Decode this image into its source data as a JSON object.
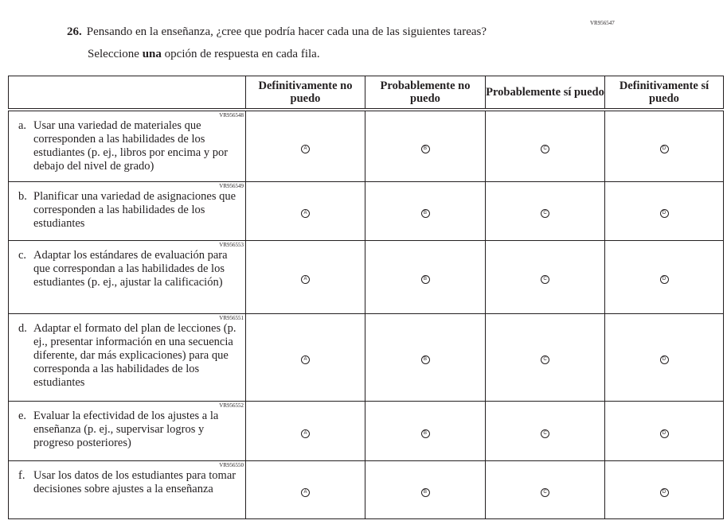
{
  "question": {
    "id": "VR956547",
    "number": "26.",
    "text": "Pensando en la enseñanza, ¿cree que podría hacer cada una de las siguientes tareas?",
    "instruction_pre": "Seleccione ",
    "instruction_bold": "una",
    "instruction_post": " opción de respuesta en cada fila."
  },
  "columns": [
    "Definitivamente no puedo",
    "Probablemente no puedo",
    "Probablemente sí puedo",
    "Definitivamente sí puedo"
  ],
  "options": [
    "A",
    "B",
    "C",
    "D"
  ],
  "rows": [
    {
      "id": "VR956548",
      "letter": "a.",
      "text": "Usar una variedad de materiales que corresponden a las habilidades de los estudiantes (p. ej., libros por encima y por debajo del nivel de grado)"
    },
    {
      "id": "VR956549",
      "letter": "b.",
      "text": "Planificar una variedad de asignaciones que corresponden a las habilidades de los estudiantes"
    },
    {
      "id": "VR956553",
      "letter": "c.",
      "text": "Adaptar los estándares de evaluación para que correspondan a las habilidades de los estudiantes (p. ej., ajustar la calificación)"
    },
    {
      "id": "VR956551",
      "letter": "d.",
      "text": "Adaptar el formato del plan de lecciones (p. ej., presentar información en una secuencia diferente, dar más explicaciones) para que corresponda a las habilidades de los estudiantes"
    },
    {
      "id": "VR956552",
      "letter": "e.",
      "text": "Evaluar la efectividad de los ajustes a la enseñanza (p. ej., supervisar logros y progreso posteriores)"
    },
    {
      "id": "VR956550",
      "letter": "f.",
      "text": "Usar los datos de los estudiantes para tomar decisiones sobre ajustes a la enseñanza"
    }
  ]
}
